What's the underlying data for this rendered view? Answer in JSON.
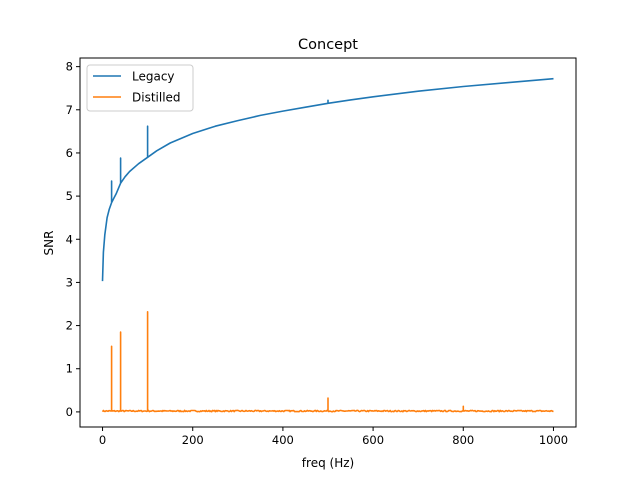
{
  "chart_data": {
    "type": "line",
    "title": "Concept",
    "xlabel": "freq (Hz)",
    "ylabel": "SNR",
    "xlim": [
      -50,
      1050
    ],
    "ylim": [
      -0.35,
      8.2
    ],
    "xticks": [
      0,
      200,
      400,
      600,
      800,
      1000
    ],
    "yticks": [
      0,
      1,
      2,
      3,
      4,
      5,
      6,
      7,
      8
    ],
    "grid": false,
    "legend_position": "top-left",
    "series": [
      {
        "name": "Legacy",
        "color": "#1f77b4",
        "x": [
          0,
          2,
          5,
          10,
          15,
          20,
          20,
          20,
          25,
          30,
          40,
          40,
          40,
          50,
          60,
          80,
          100,
          100,
          100,
          120,
          150,
          200,
          250,
          300,
          350,
          400,
          450,
          500,
          500,
          500,
          550,
          600,
          700,
          800,
          900,
          1000
        ],
        "y": [
          3.03,
          3.7,
          4.1,
          4.5,
          4.7,
          4.85,
          5.35,
          4.85,
          4.95,
          5.05,
          5.3,
          5.88,
          5.3,
          5.45,
          5.57,
          5.75,
          5.9,
          6.62,
          5.9,
          6.05,
          6.23,
          6.45,
          6.62,
          6.75,
          6.87,
          6.97,
          7.06,
          7.15,
          7.22,
          7.15,
          7.23,
          7.3,
          7.43,
          7.54,
          7.63,
          7.72
        ]
      },
      {
        "name": "Distilled",
        "color": "#ff7f0e",
        "baseline": 0.02,
        "noise_amplitude": 0.03,
        "spikes": [
          {
            "x": 20,
            "y": 1.52
          },
          {
            "x": 40,
            "y": 1.85
          },
          {
            "x": 100,
            "y": 2.32
          },
          {
            "x": 500,
            "y": 0.32
          },
          {
            "x": 800,
            "y": 0.13
          }
        ]
      }
    ]
  }
}
